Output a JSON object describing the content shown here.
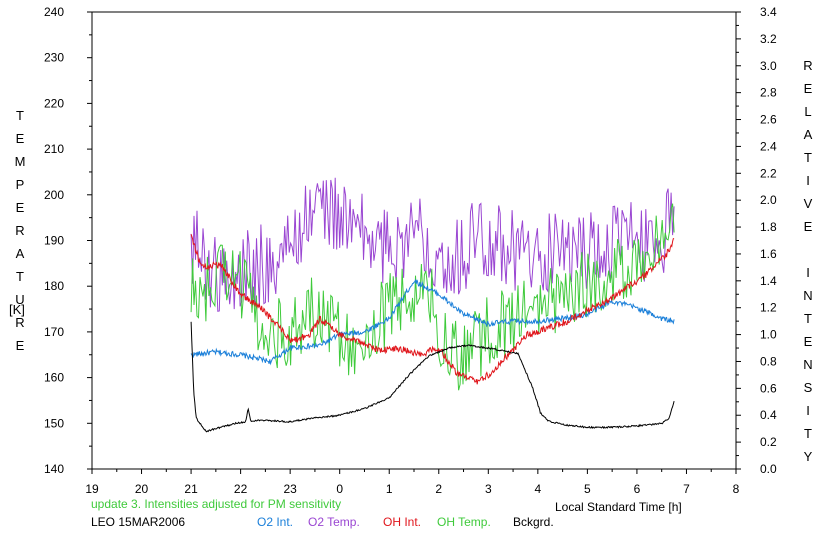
{
  "chart_data": {
    "type": "line",
    "x_axis": {
      "label": "Local Standard Time [h]",
      "range": [
        19,
        32
      ],
      "ticks": [
        "19",
        "20",
        "21",
        "22",
        "23",
        "0",
        "1",
        "2",
        "3",
        "4",
        "5",
        "6",
        "7",
        "8"
      ]
    },
    "left_axis": {
      "label": "TEMPERATURE",
      "unit": "[K]",
      "range": [
        140,
        240
      ],
      "ticks": [
        "140",
        "150",
        "160",
        "170",
        "180",
        "190",
        "200",
        "210",
        "220",
        "230",
        "240"
      ]
    },
    "right_axis": {
      "label": "RELATIVE INTENSITY",
      "range": [
        0,
        3.4
      ],
      "ticks": [
        "0.0",
        "0.2",
        "0.4",
        "0.6",
        "0.8",
        "1.0",
        "1.2",
        "1.4",
        "1.6",
        "1.8",
        "2.0",
        "2.2",
        "2.4",
        "2.6",
        "2.8",
        "3.0",
        "3.2",
        "3.4"
      ]
    },
    "grid": false,
    "series": [
      {
        "name": "O2 Int.",
        "axis": "right",
        "color": "#1a7fd9",
        "noise": 0.02,
        "x": [
          21.0,
          21.5,
          22.0,
          22.6,
          23.0,
          23.6,
          24.0,
          24.5,
          25.0,
          25.5,
          26.0,
          26.5,
          27.0,
          27.5,
          28.0,
          28.5,
          29.0,
          29.5,
          30.0,
          30.5,
          30.75
        ],
        "y": [
          0.85,
          0.87,
          0.85,
          0.8,
          0.9,
          0.92,
          1.0,
          1.02,
          1.12,
          1.4,
          1.3,
          1.15,
          1.08,
          1.1,
          1.1,
          1.12,
          1.15,
          1.25,
          1.2,
          1.12,
          1.1
        ]
      },
      {
        "name": "O2 Temp.",
        "axis": "left",
        "color": "#9a46d2",
        "noise": 9,
        "x": [
          21.0,
          21.3,
          21.8,
          22.2,
          22.6,
          23.0,
          23.3,
          23.6,
          24.0,
          24.4,
          24.8,
          25.2,
          25.6,
          26.0,
          26.4,
          26.8,
          27.2,
          27.6,
          28.0,
          28.4,
          28.8,
          29.2,
          29.6,
          30.0,
          30.4,
          30.75
        ],
        "y": [
          190,
          185,
          180,
          184,
          185,
          188,
          195,
          198,
          195,
          192,
          188,
          190,
          192,
          188,
          186,
          192,
          190,
          187,
          186,
          188,
          188,
          188,
          190,
          190,
          190,
          194
        ]
      },
      {
        "name": "OH Int.",
        "axis": "right",
        "color": "#e0151b",
        "noise": 0.025,
        "x": [
          21.0,
          21.2,
          21.6,
          22.0,
          22.4,
          22.8,
          23.0,
          23.4,
          23.6,
          24.0,
          24.4,
          24.8,
          25.2,
          25.6,
          26.0,
          26.4,
          26.8,
          27.0,
          27.4,
          27.8,
          28.2,
          28.6,
          29.0,
          29.4,
          29.8,
          30.2,
          30.6,
          30.75
        ],
        "y": [
          1.75,
          1.5,
          1.52,
          1.3,
          1.2,
          1.05,
          0.95,
          1.0,
          1.12,
          1.0,
          0.95,
          0.88,
          0.9,
          0.85,
          0.9,
          0.7,
          0.65,
          0.7,
          0.85,
          1.0,
          1.05,
          1.1,
          1.18,
          1.25,
          1.35,
          1.45,
          1.6,
          1.7
        ]
      },
      {
        "name": "OH Temp.",
        "axis": "left",
        "color": "#3fca3b",
        "noise": 8,
        "x": [
          21.0,
          21.4,
          21.8,
          22.2,
          22.6,
          23.0,
          23.4,
          23.8,
          24.2,
          24.6,
          25.0,
          25.4,
          25.8,
          26.2,
          26.6,
          27.0,
          27.4,
          27.8,
          28.2,
          28.6,
          29.0,
          29.4,
          29.8,
          30.2,
          30.6,
          30.75
        ],
        "y": [
          178,
          180,
          185,
          176,
          170,
          170,
          175,
          172,
          168,
          170,
          175,
          178,
          178,
          165,
          165,
          170,
          172,
          175,
          176,
          180,
          180,
          182,
          185,
          188,
          192,
          192
        ]
      },
      {
        "name": "Bckgrd.",
        "axis": "right",
        "color": "#000000",
        "noise": 0.006,
        "x": [
          21.0,
          21.05,
          21.1,
          21.3,
          21.6,
          21.9,
          22.1,
          22.15,
          22.2,
          22.6,
          23.0,
          23.5,
          24.0,
          24.5,
          25.0,
          25.4,
          25.8,
          26.2,
          26.6,
          27.0,
          27.3,
          27.6,
          27.9,
          28.05,
          28.2,
          28.5,
          29.0,
          29.5,
          30.0,
          30.5,
          30.65,
          30.75
        ],
        "y": [
          1.1,
          0.6,
          0.38,
          0.28,
          0.31,
          0.34,
          0.35,
          0.45,
          0.36,
          0.36,
          0.35,
          0.38,
          0.4,
          0.45,
          0.53,
          0.7,
          0.84,
          0.9,
          0.92,
          0.9,
          0.88,
          0.86,
          0.6,
          0.42,
          0.36,
          0.33,
          0.31,
          0.31,
          0.32,
          0.34,
          0.38,
          0.5
        ]
      }
    ],
    "annotations": {
      "update_note": "update 3. Intensities adjusted for PM sensitivity",
      "station_date": "LEO 15MAR2006"
    }
  },
  "colors": {
    "update_note": "#3fca3b",
    "o2_int": "#1a7fd9",
    "o2_temp": "#9a46d2",
    "oh_int": "#e0151b",
    "oh_temp": "#3fca3b",
    "bckgrd": "#000000"
  }
}
